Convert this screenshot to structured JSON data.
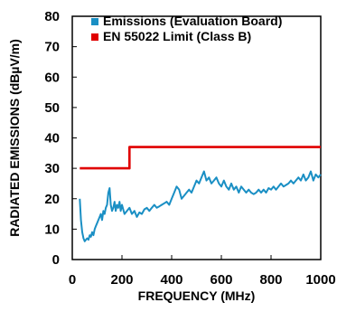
{
  "chart_data": {
    "type": "line",
    "title": "",
    "xlabel": "FREQUENCY (MHz)",
    "ylabel": "RADIATED EMISSIONS (dBµV/m)",
    "xlim": [
      0,
      1000
    ],
    "ylim": [
      0,
      80
    ],
    "x_ticks": [
      "0",
      "200",
      "400",
      "600",
      "800",
      "1000"
    ],
    "y_ticks": [
      "0",
      "10",
      "20",
      "30",
      "40",
      "50",
      "60",
      "70",
      "80"
    ],
    "grid": false,
    "legend_position": "top-left",
    "series": [
      {
        "name": "Emissions (Evaluation Board)",
        "color": "#1a8fc4",
        "x": [
          30,
          35,
          40,
          45,
          50,
          55,
          60,
          65,
          70,
          75,
          80,
          85,
          90,
          95,
          100,
          105,
          110,
          115,
          120,
          125,
          130,
          135,
          140,
          145,
          150,
          155,
          160,
          165,
          170,
          175,
          180,
          185,
          190,
          195,
          200,
          210,
          220,
          230,
          240,
          250,
          260,
          270,
          280,
          290,
          300,
          310,
          320,
          330,
          340,
          350,
          360,
          370,
          380,
          390,
          400,
          410,
          420,
          430,
          440,
          450,
          460,
          470,
          480,
          490,
          500,
          510,
          520,
          530,
          540,
          550,
          560,
          570,
          580,
          590,
          600,
          610,
          620,
          630,
          640,
          650,
          660,
          670,
          680,
          690,
          700,
          710,
          720,
          730,
          740,
          750,
          760,
          770,
          780,
          790,
          800,
          810,
          820,
          830,
          840,
          850,
          860,
          870,
          880,
          890,
          900,
          910,
          920,
          930,
          940,
          950,
          960,
          970,
          980,
          990,
          1000
        ],
        "y": [
          20,
          13,
          9,
          7,
          6,
          6.5,
          7,
          6.5,
          8,
          7.5,
          9,
          8,
          10,
          11,
          12,
          13,
          14,
          15,
          13,
          16,
          15,
          17,
          18,
          22,
          23.5,
          18,
          16,
          17,
          19,
          16,
          18,
          17,
          19,
          16,
          18,
          15,
          16,
          17,
          15,
          16,
          14,
          15.5,
          15,
          16.5,
          17,
          16,
          17,
          18,
          17,
          17.5,
          18,
          18.5,
          19,
          18,
          20,
          22,
          24,
          23,
          20,
          21,
          22,
          23,
          22,
          24,
          26,
          25,
          27,
          29,
          26,
          27,
          25,
          26,
          27,
          25,
          24,
          26,
          24,
          23,
          25,
          23,
          24,
          22,
          24,
          23,
          22,
          23,
          22,
          21.5,
          22,
          23,
          22,
          23,
          22,
          23.5,
          23,
          24,
          23,
          24,
          25,
          24,
          24.5,
          25,
          26,
          25,
          26,
          27,
          26,
          28,
          26,
          27,
          29,
          26,
          28,
          27,
          28
        ]
      },
      {
        "name": "EN 55022 Limit (Class B)",
        "color": "#e00000",
        "x": [
          30,
          230,
          230,
          1000
        ],
        "y": [
          30,
          30,
          37,
          37
        ]
      }
    ]
  }
}
